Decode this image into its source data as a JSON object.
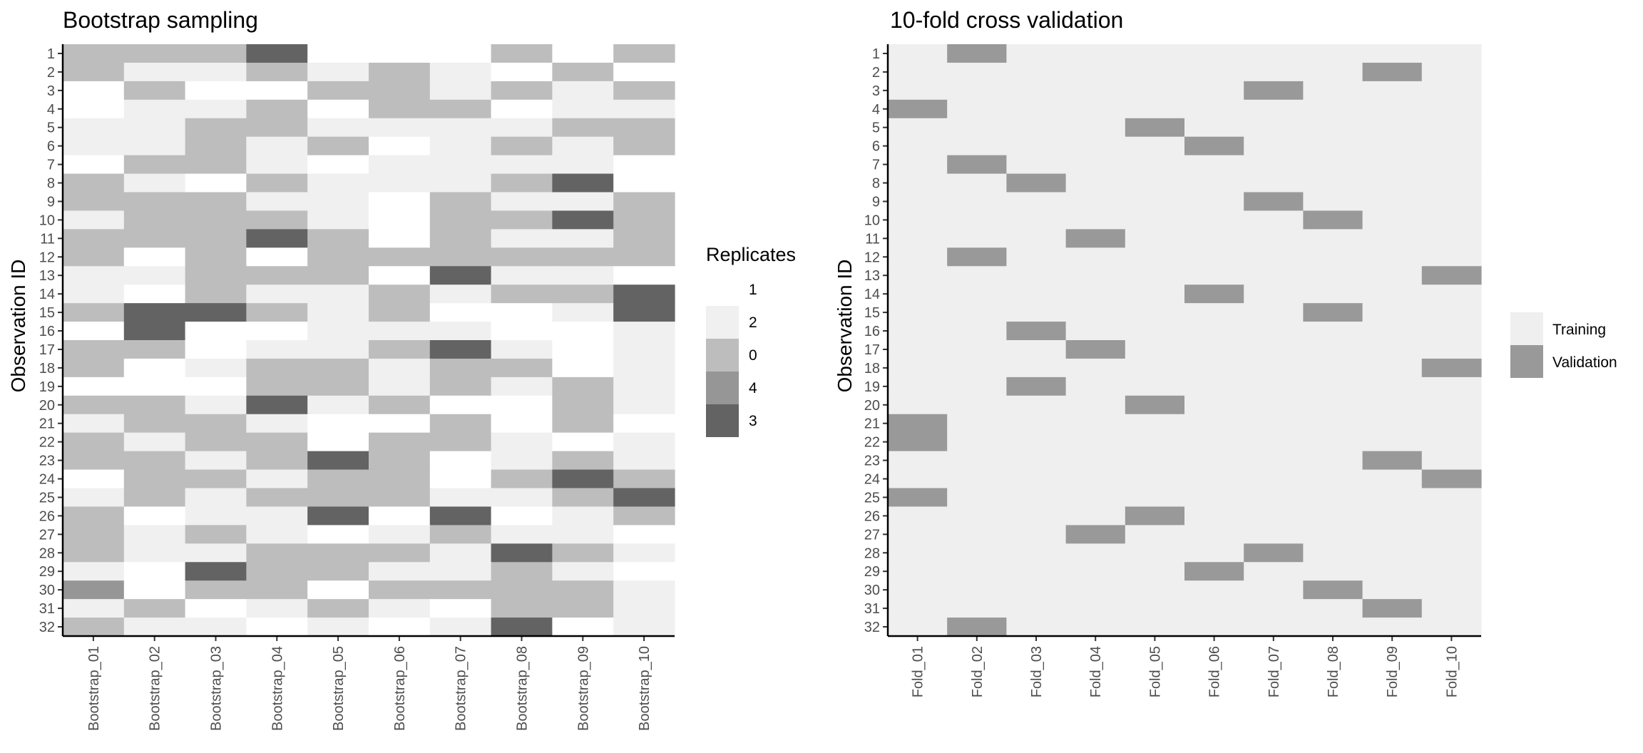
{
  "chart_data": [
    {
      "type": "heatmap",
      "title": "Bootstrap sampling",
      "xlabel": "",
      "ylabel": "Observation ID",
      "x_categories": [
        "Bootstrap_01",
        "Bootstrap_02",
        "Bootstrap_03",
        "Bootstrap_04",
        "Bootstrap_05",
        "Bootstrap_06",
        "Bootstrap_07",
        "Bootstrap_08",
        "Bootstrap_09",
        "Bootstrap_10"
      ],
      "y_categories": [
        "1",
        "2",
        "3",
        "4",
        "5",
        "6",
        "7",
        "8",
        "9",
        "10",
        "11",
        "12",
        "13",
        "14",
        "15",
        "16",
        "17",
        "18",
        "19",
        "20",
        "21",
        "22",
        "23",
        "24",
        "25",
        "26",
        "27",
        "28",
        "29",
        "30",
        "31",
        "32"
      ],
      "legend": {
        "title": "Replicates",
        "placement": "right",
        "levels": [
          {
            "label": "1",
            "color": "#ffffff"
          },
          {
            "label": "2",
            "color": "#f0f0f0"
          },
          {
            "label": "0",
            "color": "#bdbdbd"
          },
          {
            "label": "4",
            "color": "#969696"
          },
          {
            "label": "3",
            "color": "#636363"
          }
        ]
      },
      "grid": false,
      "values": [
        [
          0,
          0,
          0,
          3,
          1,
          1,
          1,
          0,
          1,
          0
        ],
        [
          0,
          2,
          2,
          0,
          2,
          0,
          2,
          1,
          0,
          1
        ],
        [
          1,
          0,
          1,
          1,
          0,
          0,
          2,
          0,
          2,
          0
        ],
        [
          1,
          2,
          2,
          0,
          1,
          0,
          0,
          1,
          2,
          2
        ],
        [
          2,
          2,
          0,
          0,
          2,
          2,
          2,
          2,
          0,
          0
        ],
        [
          2,
          2,
          0,
          2,
          0,
          1,
          2,
          0,
          2,
          0
        ],
        [
          1,
          0,
          0,
          2,
          1,
          2,
          2,
          2,
          2,
          1
        ],
        [
          0,
          2,
          1,
          0,
          2,
          2,
          2,
          0,
          3,
          1
        ],
        [
          0,
          0,
          0,
          2,
          2,
          1,
          0,
          2,
          2,
          0
        ],
        [
          2,
          0,
          0,
          0,
          2,
          1,
          0,
          0,
          3,
          0
        ],
        [
          0,
          0,
          0,
          3,
          0,
          1,
          0,
          2,
          2,
          0
        ],
        [
          0,
          1,
          0,
          1,
          0,
          0,
          0,
          0,
          0,
          0
        ],
        [
          2,
          2,
          0,
          0,
          0,
          1,
          3,
          2,
          2,
          1
        ],
        [
          2,
          1,
          0,
          2,
          2,
          0,
          2,
          0,
          0,
          3
        ],
        [
          0,
          3,
          3,
          0,
          2,
          0,
          1,
          1,
          2,
          3
        ],
        [
          1,
          3,
          1,
          1,
          2,
          2,
          2,
          1,
          1,
          2
        ],
        [
          0,
          0,
          1,
          2,
          2,
          0,
          3,
          2,
          1,
          2
        ],
        [
          0,
          1,
          2,
          0,
          0,
          2,
          0,
          0,
          1,
          2
        ],
        [
          1,
          1,
          1,
          0,
          0,
          2,
          0,
          2,
          0,
          2
        ],
        [
          0,
          0,
          2,
          3,
          2,
          0,
          1,
          1,
          0,
          2
        ],
        [
          2,
          0,
          0,
          2,
          1,
          1,
          0,
          1,
          0,
          1
        ],
        [
          0,
          2,
          0,
          0,
          1,
          0,
          0,
          2,
          1,
          2
        ],
        [
          0,
          0,
          2,
          0,
          3,
          0,
          1,
          2,
          0,
          2
        ],
        [
          1,
          0,
          0,
          2,
          0,
          0,
          1,
          0,
          3,
          0
        ],
        [
          2,
          0,
          2,
          0,
          0,
          0,
          2,
          2,
          0,
          3
        ],
        [
          0,
          1,
          2,
          2,
          3,
          1,
          3,
          1,
          2,
          0
        ],
        [
          0,
          2,
          0,
          2,
          1,
          2,
          0,
          2,
          2,
          1
        ],
        [
          0,
          2,
          2,
          0,
          0,
          0,
          2,
          3,
          0,
          2
        ],
        [
          2,
          1,
          3,
          0,
          0,
          2,
          2,
          0,
          2,
          1
        ],
        [
          4,
          1,
          0,
          0,
          1,
          0,
          0,
          0,
          0,
          2
        ],
        [
          2,
          0,
          1,
          2,
          0,
          2,
          1,
          0,
          0,
          2
        ],
        [
          0,
          2,
          2,
          1,
          2,
          1,
          2,
          3,
          1,
          2
        ]
      ]
    },
    {
      "type": "heatmap",
      "title": "10-fold cross validation",
      "xlabel": "",
      "ylabel": "Observation ID",
      "x_categories": [
        "Fold_01",
        "Fold_02",
        "Fold_03",
        "Fold_04",
        "Fold_05",
        "Fold_06",
        "Fold_07",
        "Fold_08",
        "Fold_09",
        "Fold_10"
      ],
      "y_categories": [
        "1",
        "2",
        "3",
        "4",
        "5",
        "6",
        "7",
        "8",
        "9",
        "10",
        "11",
        "12",
        "13",
        "14",
        "15",
        "16",
        "17",
        "18",
        "19",
        "20",
        "21",
        "22",
        "23",
        "24",
        "25",
        "26",
        "27",
        "28",
        "29",
        "30",
        "31",
        "32"
      ],
      "legend": {
        "title": "",
        "placement": "right",
        "levels": [
          {
            "label": "Training",
            "color": "#efefef"
          },
          {
            "label": "Validation",
            "color": "#999999"
          }
        ]
      },
      "grid": false,
      "validation_fold_by_observation": [
        2,
        9,
        7,
        1,
        5,
        6,
        2,
        3,
        7,
        8,
        4,
        2,
        10,
        6,
        8,
        3,
        4,
        10,
        3,
        5,
        1,
        1,
        9,
        10,
        1,
        5,
        4,
        7,
        6,
        8,
        9,
        2
      ]
    }
  ]
}
